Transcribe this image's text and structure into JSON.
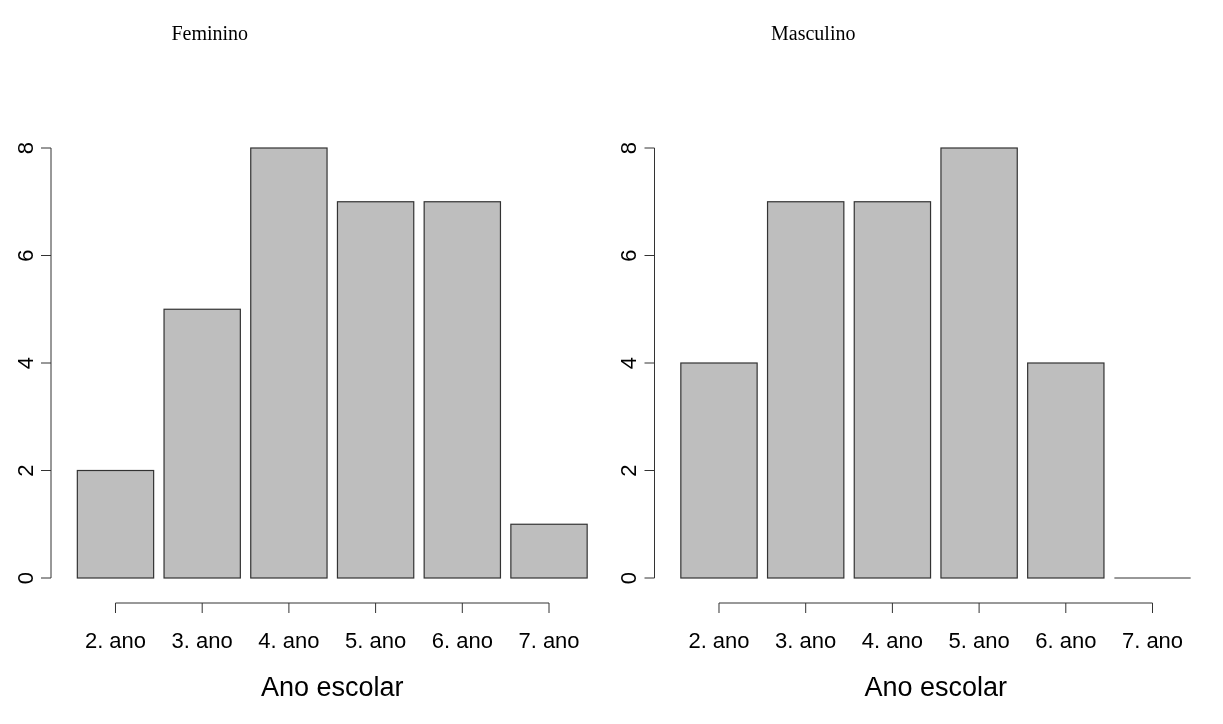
{
  "chart_data": [
    {
      "type": "bar",
      "title": "Feminino",
      "xlabel": "Ano escolar",
      "categories": [
        "2. ano",
        "3. ano",
        "4. ano",
        "5. ano",
        "6. ano",
        "7. ano"
      ],
      "values": [
        2,
        5,
        8,
        7,
        7,
        1
      ],
      "color": "#bebebe",
      "ylim": [
        0,
        8
      ],
      "yticks": [
        0,
        2,
        4,
        6,
        8
      ],
      "grid": false
    },
    {
      "type": "bar",
      "title": "Masculino",
      "xlabel": "Ano escolar",
      "categories": [
        "2. ano",
        "3. ano",
        "4. ano",
        "5. ano",
        "6. ano",
        "7. ano"
      ],
      "values": [
        4,
        7,
        7,
        8,
        4,
        0
      ],
      "color": "#bebebe",
      "ylim": [
        0,
        8
      ],
      "yticks": [
        0,
        2,
        4,
        6,
        8
      ],
      "grid": false
    }
  ]
}
